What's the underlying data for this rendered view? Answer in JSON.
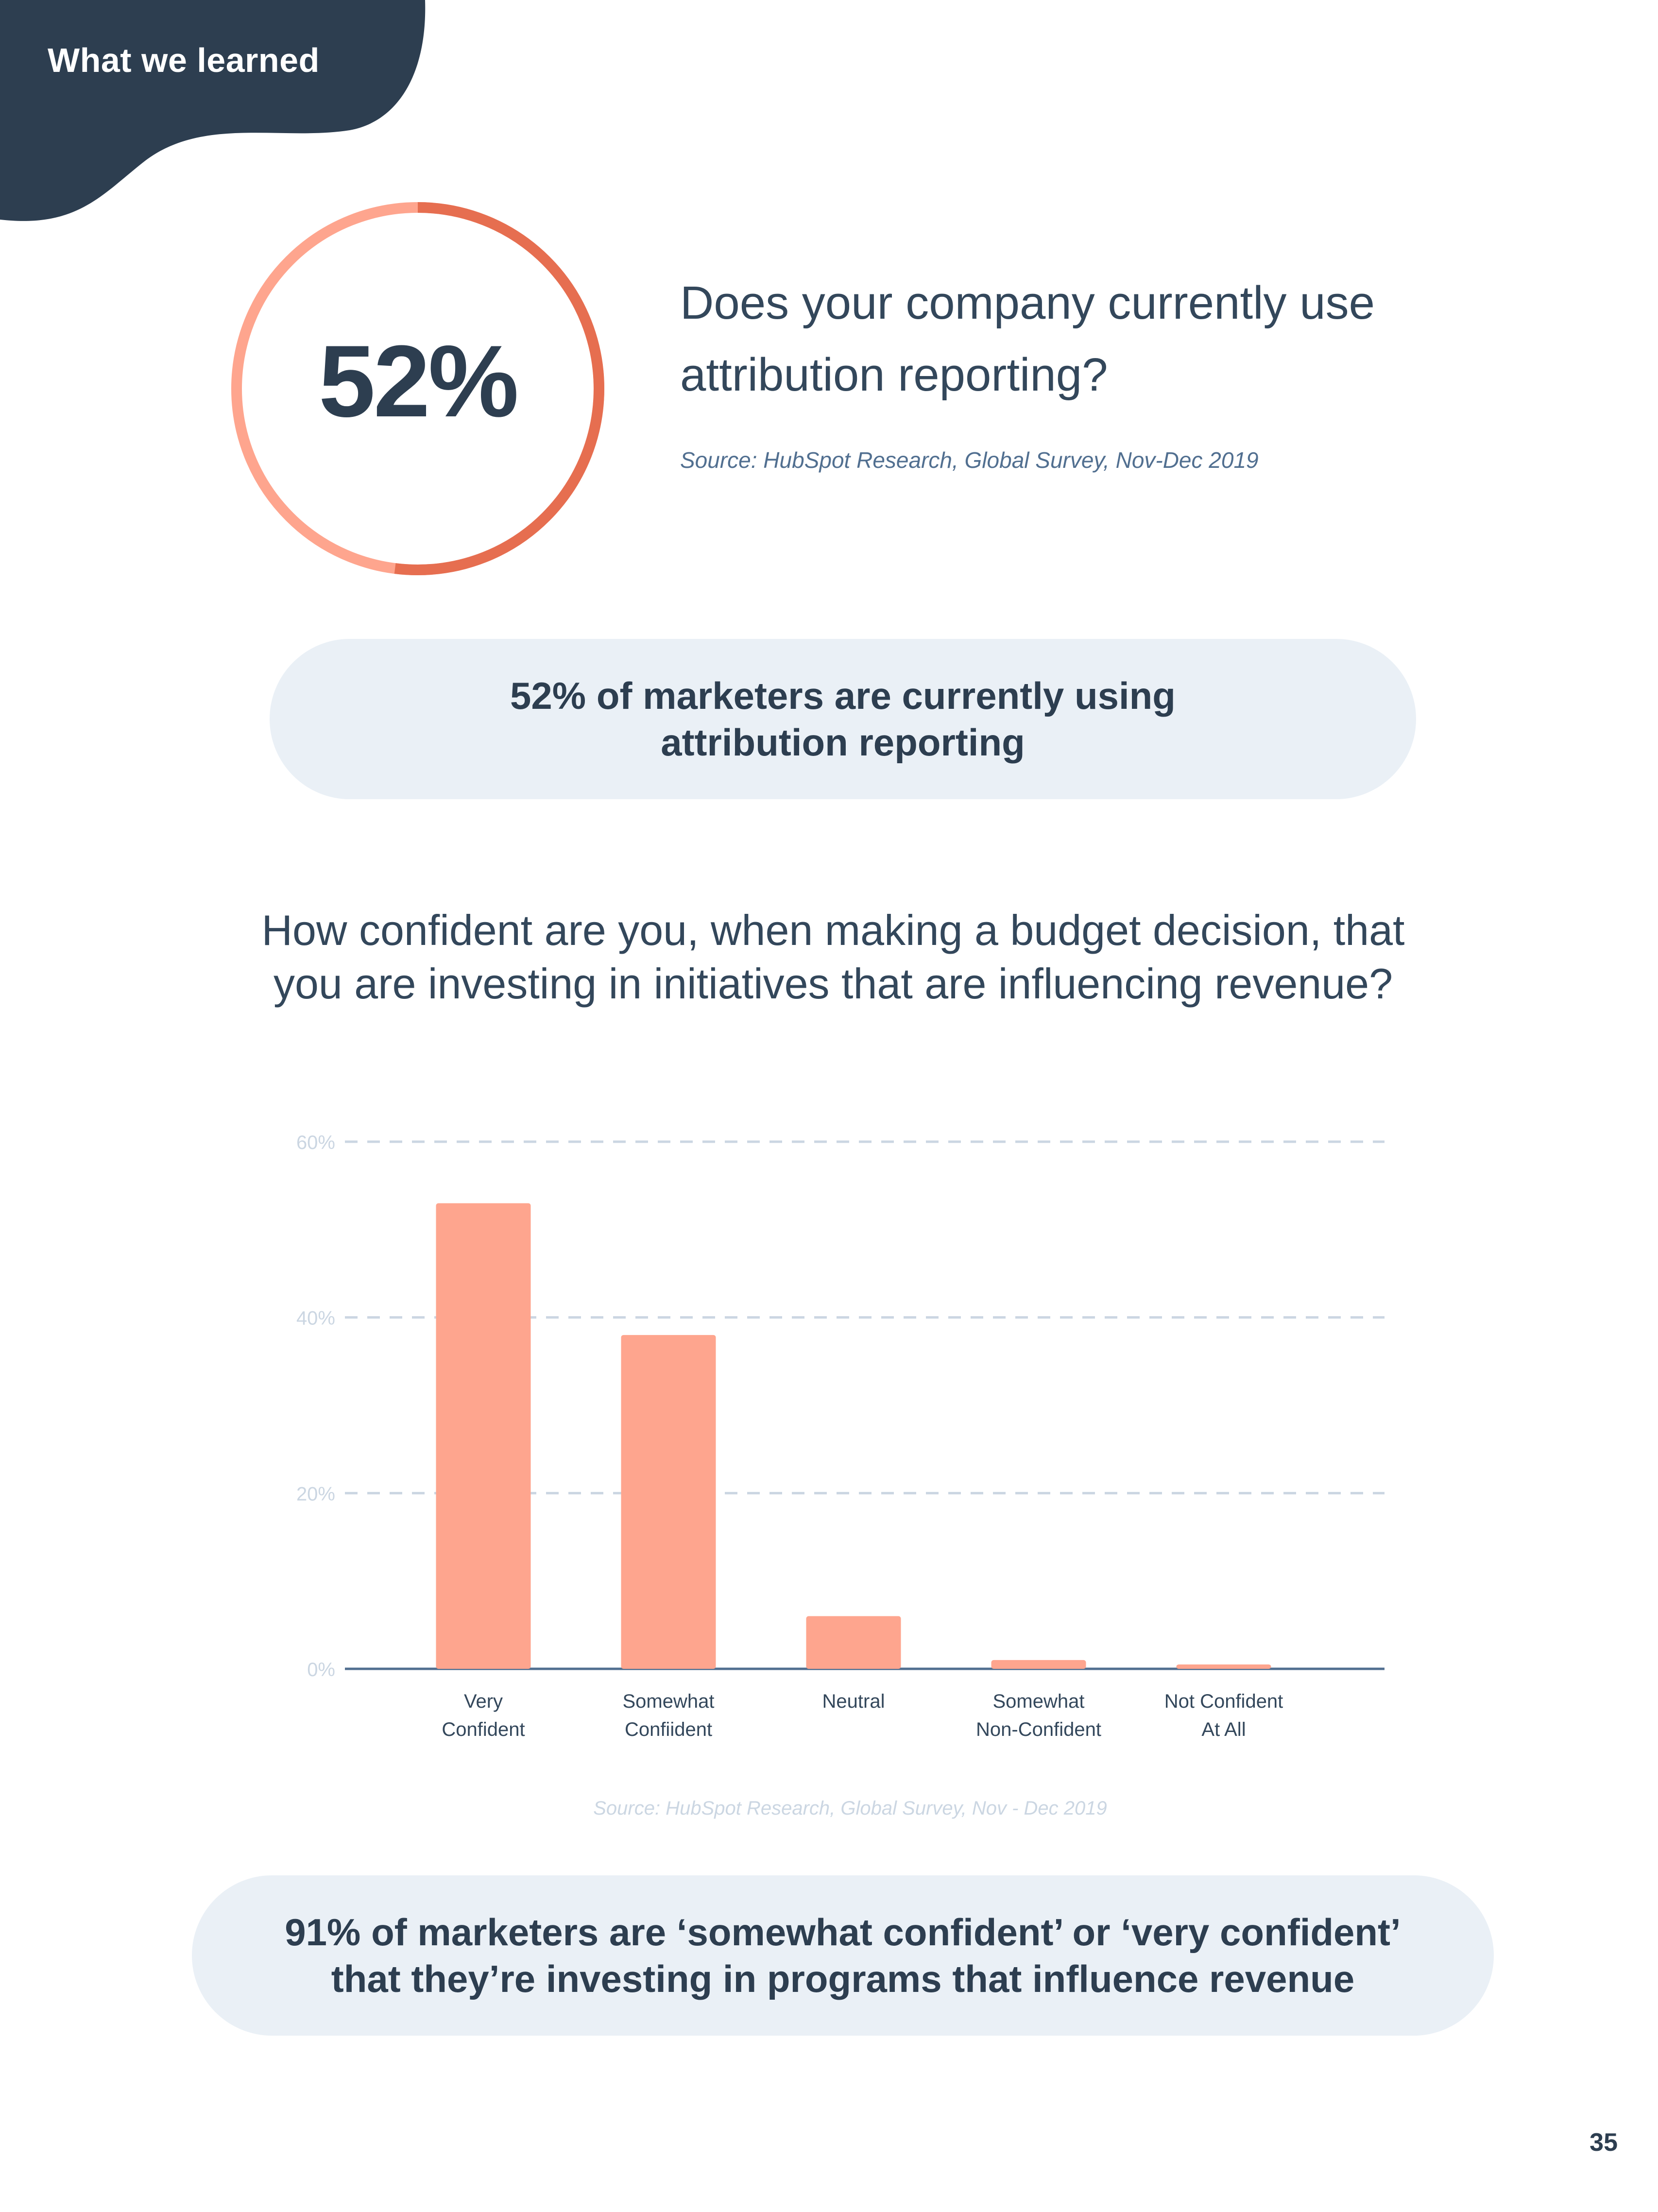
{
  "header": {
    "section_tag": "What we learned",
    "blob_color": "#2d3e50"
  },
  "stat1": {
    "value_text": "52%",
    "fraction": 0.52,
    "question": "Does your company currently use attribution reporting?",
    "source": "Source: HubSpot Research, Global Survey, Nov-Dec 2019",
    "ring_colors": {
      "filled": "#e66e50",
      "remaining": "#fea58e"
    }
  },
  "callout1": {
    "lines": [
      "52% of marketers are currently using",
      "attribution reporting"
    ]
  },
  "question2": "How confident are you, when making a budget decision, that you are investing in initiatives that are influencing revenue?",
  "chart_data": {
    "type": "bar",
    "categories": [
      [
        "Very",
        "Confident"
      ],
      [
        "Somewhat",
        "Confiident"
      ],
      [
        "Neutral"
      ],
      [
        "Somewhat",
        "Non-Confident"
      ],
      [
        "Not Confident",
        "At All"
      ]
    ],
    "values": [
      53,
      38,
      6,
      1,
      0.5
    ],
    "yticks": [
      "0%",
      "20%",
      "40%",
      "60%"
    ],
    "ytick_values": [
      0,
      20,
      40,
      60
    ],
    "ylim": [
      0,
      60
    ],
    "grid": true,
    "bar_color": "#fea58e",
    "source": "Source: HubSpot Research, Global Survey, Nov - Dec 2019"
  },
  "callout2": {
    "lines": [
      "91% of marketers are ‘somewhat confident’ or ‘very confident’",
      "that they’re investing in programs that influence revenue"
    ]
  },
  "page_number": "35"
}
